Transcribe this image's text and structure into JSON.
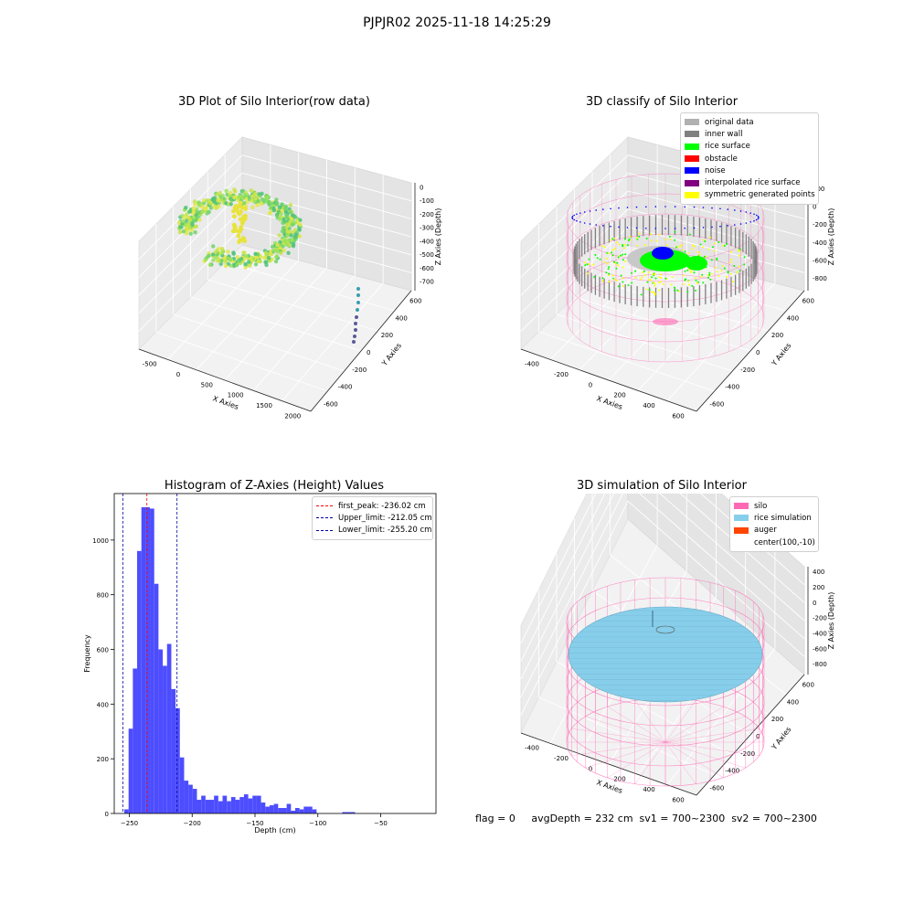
{
  "figure": {
    "suptitle": "PJPJR02 2025-11-18 14:25:29",
    "footer": "flag = 0     avgDepth = 232 cm  sv1 = 700~2300  sv2 = 700~2300"
  },
  "colors": {
    "rice_surface": "#00ff00",
    "inner_wall": "#808080",
    "original": "#b0b0b0",
    "obstacle": "#ff0000",
    "noise": "#0000ff",
    "interpolated": "#800080",
    "symmetric": "#ffff00",
    "silo": "#ff69b4",
    "rice_sim": "#87ceeb",
    "auger": "#ff4500",
    "hist_bar": "#4d4dff"
  },
  "chart_data": [
    {
      "type": "scatter",
      "panel": "raw",
      "title": "3D Plot of Silo Interior(row data)",
      "xlabel": "X Axies",
      "ylabel": "Y Axies",
      "zlabel": "Z Axies (Depth)",
      "x_ticks": [
        "-500",
        "0",
        "500",
        "1000",
        "1500",
        "2000"
      ],
      "y_ticks": [
        "-600",
        "-400",
        "-200",
        "0",
        "200",
        "400",
        "600"
      ],
      "z_ticks": [
        "0",
        "-100",
        "-200",
        "-300",
        "-400",
        "-500",
        "-600",
        "-700"
      ]
    },
    {
      "type": "scatter",
      "panel": "classify",
      "title": "3D classify of Silo Interior",
      "xlabel": "X Axies",
      "ylabel": "Y Axies",
      "zlabel": "Z Axies (Depth)",
      "x_ticks": [
        "-400",
        "-200",
        "0",
        "200",
        "400",
        "600"
      ],
      "y_ticks": [
        "-600",
        "-400",
        "-200",
        "0",
        "200",
        "400",
        "600"
      ],
      "z_ticks": [
        "200",
        "0",
        "-200",
        "-400",
        "-600",
        "-800"
      ],
      "legend": [
        {
          "label": "original data",
          "color": "#b0b0b0"
        },
        {
          "label": "inner wall",
          "color": "#808080"
        },
        {
          "label": "rice surface",
          "color": "#00ff00"
        },
        {
          "label": "obstacle",
          "color": "#ff0000"
        },
        {
          "label": "noise",
          "color": "#0000ff"
        },
        {
          "label": "interpolated rice surface",
          "color": "#800080"
        },
        {
          "label": "symmetric generated points",
          "color": "#ffff00"
        }
      ]
    },
    {
      "type": "bar",
      "panel": "histogram",
      "title": "Histogram of Z-Axies (Height) Values",
      "xlabel": "Depth (cm)",
      "ylabel": "Frequency",
      "xlim": [
        -262,
        -6
      ],
      "ylim": [
        0,
        1170
      ],
      "x_ticks": [
        -250,
        -200,
        -150,
        -100,
        -50
      ],
      "y_ticks": [
        0,
        200,
        400,
        600,
        800,
        1000
      ],
      "bin_width": 3.4,
      "bin_start": -254,
      "values": [
        15,
        310,
        530,
        960,
        1120,
        1120,
        1115,
        840,
        600,
        540,
        620,
        455,
        385,
        205,
        120,
        105,
        90,
        50,
        65,
        50,
        50,
        65,
        45,
        65,
        45,
        60,
        50,
        60,
        70,
        55,
        65,
        65,
        40,
        25,
        30,
        35,
        20,
        20,
        35,
        10,
        20,
        15,
        25,
        25,
        15,
        0,
        0,
        0,
        0,
        0,
        0,
        5,
        5,
        5
      ],
      "vlines": [
        {
          "x": -236.02,
          "color": "#ff0000",
          "label": "first_peak: -236.02 cm"
        },
        {
          "x": -212.05,
          "color": "#0000aa",
          "label": "Upper_limit: -212.05 cm"
        },
        {
          "x": -255.2,
          "color": "#0000aa",
          "label": "Lower_limit: -255.20 cm"
        }
      ]
    },
    {
      "type": "scatter",
      "panel": "simulation",
      "title": "3D simulation of Silo Interior",
      "xlabel": "X Axies",
      "ylabel": "Y Axies",
      "zlabel": "Z Axies (Depth)",
      "x_ticks": [
        "-400",
        "-200",
        "0",
        "200",
        "400",
        "600"
      ],
      "y_ticks": [
        "-600",
        "-400",
        "-200",
        "0",
        "200",
        "400",
        "600"
      ],
      "z_ticks": [
        "400",
        "200",
        "0",
        "-200",
        "-400",
        "-600",
        "-800"
      ],
      "legend": [
        {
          "label": "silo",
          "color": "#ff69b4"
        },
        {
          "label": "rice simulation",
          "color": "#87ceeb"
        },
        {
          "label": "auger",
          "color": "#ff4500"
        },
        {
          "label": "center(100,-10)",
          "color": ""
        }
      ]
    }
  ]
}
